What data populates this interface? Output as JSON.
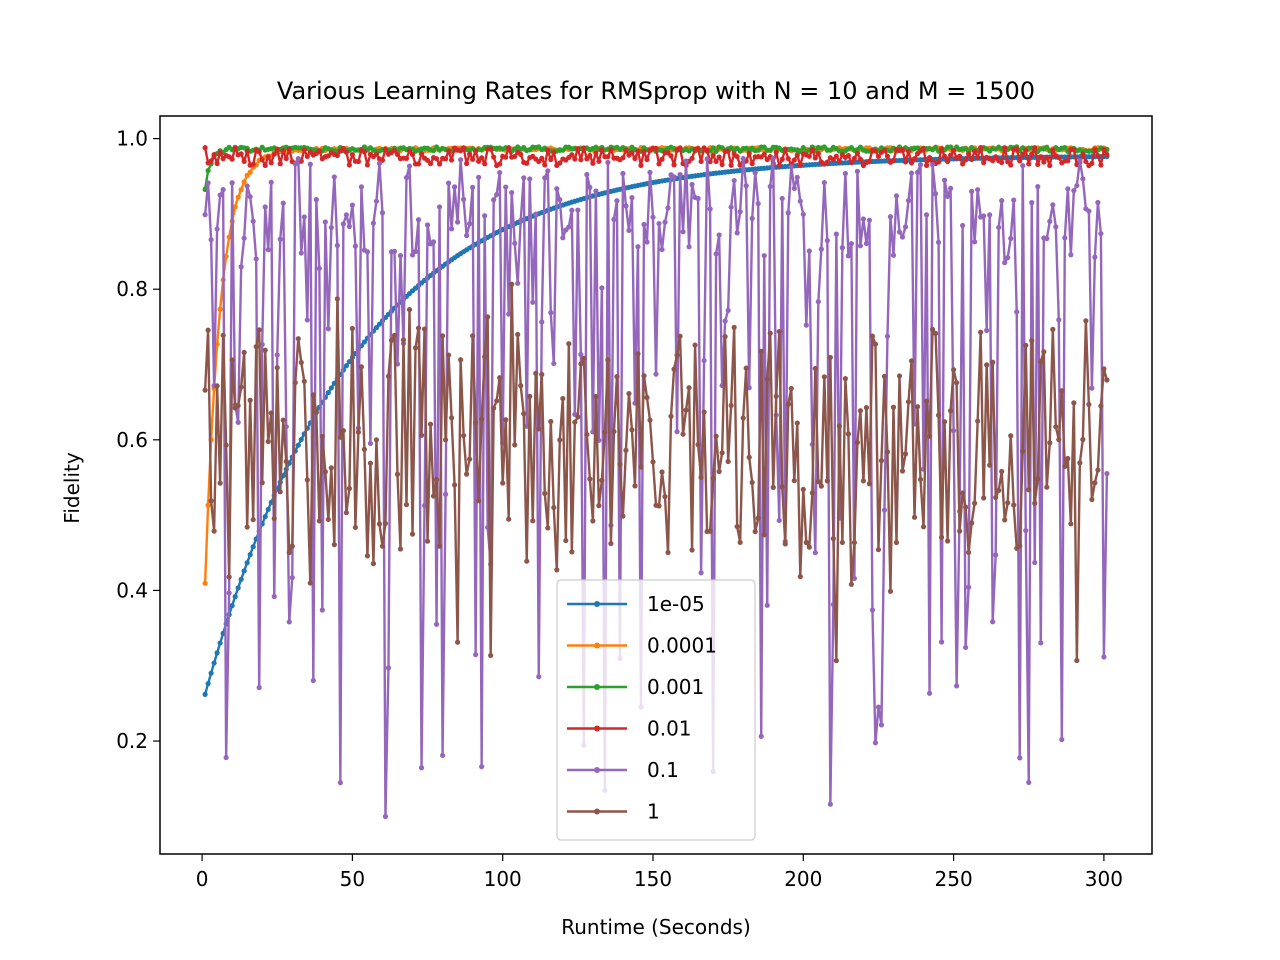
{
  "chart_data": {
    "type": "line",
    "title": "Various Learning Rates for RMSprop with N = 10 and M = 1500",
    "xlabel": "Runtime (Seconds)",
    "ylabel": "Fidelity",
    "xlim": [
      -14,
      316
    ],
    "ylim": [
      0.05,
      1.03
    ],
    "xticks": [
      0,
      50,
      100,
      150,
      200,
      250,
      300
    ],
    "yticks": [
      0.2,
      0.4,
      0.6,
      0.8,
      1.0
    ],
    "xtick_labels": [
      "0",
      "50",
      "100",
      "150",
      "200",
      "250",
      "300"
    ],
    "ytick_labels": [
      "0.2",
      "0.4",
      "0.6",
      "0.8",
      "1.0"
    ],
    "grid": false,
    "legend_position": "lower-center",
    "series": [
      {
        "name": "1e-05",
        "color": "#1f77b4",
        "model": {
          "kind": "saturating",
          "start": 0.262,
          "end": 0.978,
          "rate": 0.02,
          "noise": 0.0
        }
      },
      {
        "name": "0.0001",
        "color": "#ff7f0e",
        "model": {
          "kind": "saturating",
          "start": 0.408,
          "end": 0.986,
          "rate": 0.2,
          "noise": 0.002
        }
      },
      {
        "name": "0.001",
        "color": "#2ca02c",
        "model": {
          "kind": "saturating",
          "start": 0.93,
          "end": 0.986,
          "rate": 0.6,
          "noise": 0.003
        }
      },
      {
        "name": "0.01",
        "color": "#d62728",
        "model": {
          "kind": "noisy",
          "mean": 0.976,
          "amp": 0.012,
          "min": 0.955,
          "max": 0.988
        }
      },
      {
        "name": "0.1",
        "color": "#9467bd",
        "model": {
          "kind": "noisy",
          "mean": 0.86,
          "amp": 0.18,
          "min": 0.09,
          "max": 0.978
        }
      },
      {
        "name": "1",
        "color": "#8c564b",
        "model": {
          "kind": "noisy",
          "mean": 0.57,
          "amp": 0.13,
          "min": 0.226,
          "max": 0.858
        }
      }
    ],
    "x": {
      "start": 1,
      "end": 301,
      "step": 1
    }
  }
}
